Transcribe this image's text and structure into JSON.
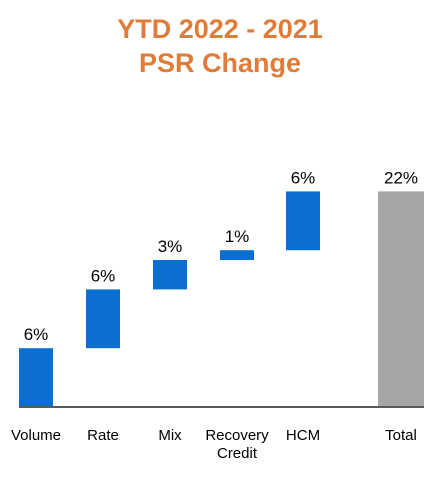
{
  "chart_data": {
    "type": "bar",
    "subtype": "waterfall",
    "title": "YTD 2022 - 2021",
    "subtitle": "PSR Change",
    "categories": [
      [
        "Volume"
      ],
      [
        "Rate"
      ],
      [
        "Mix"
      ],
      [
        "Recovery",
        "Credit"
      ],
      [
        "HCM"
      ],
      [
        "Total"
      ]
    ],
    "values": [
      6,
      6,
      3,
      1,
      6,
      22
    ],
    "value_labels": [
      "6%",
      "6%",
      "3%",
      "1%",
      "6%",
      "22%"
    ],
    "bar_kinds": [
      "delta",
      "delta",
      "delta",
      "delta",
      "delta",
      "total"
    ],
    "ylim": [
      0,
      22
    ],
    "grid": false,
    "legend": "none",
    "colors": {
      "title": "#E07B39",
      "delta": "#0A6FD0",
      "total": "#A6A6A6",
      "axis": "#595959",
      "text": "#000000"
    }
  }
}
